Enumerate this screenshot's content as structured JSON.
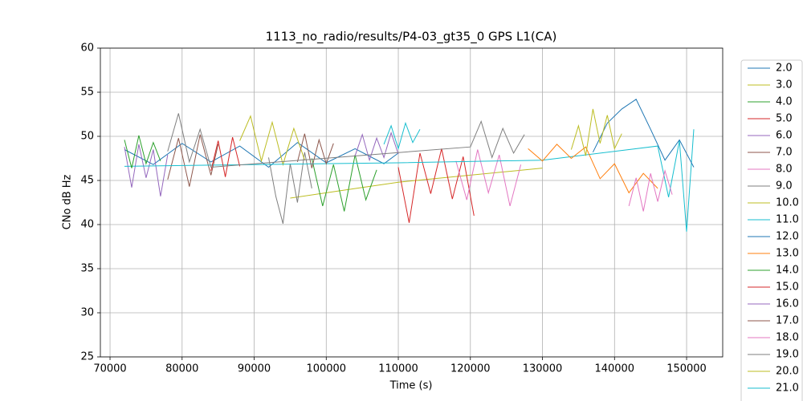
{
  "chart_data": {
    "type": "line",
    "title": "1113_no_radio/results/P4-03_gt35_0 GPS L1(CA)",
    "xlabel": "Time (s)",
    "ylabel": "CNo dB Hz",
    "xlim": [
      68660,
      155010
    ],
    "ylim": [
      25,
      60
    ],
    "xticks": [
      70000,
      80000,
      90000,
      100000,
      110000,
      120000,
      130000,
      140000,
      150000
    ],
    "yticks": [
      25,
      30,
      35,
      40,
      45,
      50,
      55,
      60
    ],
    "grid": true,
    "legend": "outside right",
    "series": [
      {
        "name": "2.0",
        "color": "#1f77b4",
        "x": [
          72000,
          76000,
          80000,
          84000,
          88000,
          92000,
          96000,
          100000,
          104000,
          108000,
          110000
        ],
        "values": [
          48.5,
          46.8,
          49.2,
          47.1,
          48.9,
          46.5,
          49.3,
          47.0,
          48.6,
          46.9,
          48.1
        ]
      },
      {
        "name": "3.0",
        "color": "#bcbd22",
        "x": [
          95000,
          100000,
          105000,
          110000,
          115000,
          120000,
          125000,
          130000
        ],
        "values": [
          43.0,
          43.6,
          44.2,
          44.8,
          45.2,
          45.6,
          46.0,
          46.4
        ]
      },
      {
        "name": "4.0",
        "color": "#2ca02c",
        "x": [
          98000,
          99500,
          101000,
          102500,
          104000,
          105500,
          107000
        ],
        "values": [
          47.5,
          42.1,
          46.8,
          41.5,
          47.9,
          42.8,
          46.2
        ]
      },
      {
        "name": "5.0",
        "color": "#d62728",
        "x": [
          110000,
          111500,
          113000,
          114500,
          116000,
          117500,
          119000,
          120500
        ],
        "values": [
          46.5,
          40.2,
          48.1,
          43.5,
          48.6,
          42.9,
          47.7,
          41.0
        ]
      },
      {
        "name": "6.0",
        "color": "#9467bd",
        "x": [
          72000,
          73000,
          74000,
          75000,
          76000,
          77000,
          78000
        ],
        "values": [
          48.8,
          44.2,
          49.1,
          45.3,
          48.5,
          43.2,
          47.9
        ]
      },
      {
        "name": "7.0",
        "color": "#8c564b",
        "x": [
          78000,
          79500,
          81000,
          82500,
          84000,
          85000
        ],
        "values": [
          45.1,
          49.8,
          44.3,
          50.2,
          45.6,
          49.1
        ]
      },
      {
        "name": "8.0",
        "color": "#e377c2",
        "x": [
          118000,
          119500,
          121000,
          122500,
          124000,
          125500,
          127000
        ],
        "values": [
          47.2,
          42.8,
          48.5,
          43.6,
          47.9,
          42.1,
          46.8
        ]
      },
      {
        "name": "9.0",
        "color": "#7f7f7f",
        "x": [
          92000,
          93000,
          94000,
          95000,
          96000,
          97000,
          98000
        ],
        "values": [
          47.6,
          43.2,
          40.1,
          46.9,
          42.5,
          48.2,
          44.1
        ]
      },
      {
        "name": "10.0",
        "color": "#bcbd22",
        "x": [
          88000,
          89500,
          91000,
          92500,
          94000,
          95500,
          97000
        ],
        "values": [
          49.5,
          52.3,
          47.2,
          51.6,
          46.8,
          50.9,
          47.3
        ]
      },
      {
        "name": "11.0",
        "color": "#17becf",
        "x": [
          72000,
          90000,
          110000,
          130000,
          146000,
          147500,
          149000,
          150000,
          151000
        ],
        "values": [
          46.6,
          46.8,
          47.0,
          47.3,
          48.9,
          43.1,
          49.5,
          39.2,
          50.8
        ]
      },
      {
        "name": "12.0",
        "color": "#1f77b4",
        "x": [
          137000,
          139000,
          141000,
          143000,
          145000,
          147000,
          149000,
          151000
        ],
        "values": [
          48.2,
          51.5,
          53.1,
          54.2,
          50.8,
          47.3,
          49.6,
          46.5
        ]
      },
      {
        "name": "13.0",
        "color": "#ff7f0e",
        "x": [
          128000,
          130000,
          132000,
          134000,
          136000,
          138000,
          140000,
          142000,
          144000,
          146000
        ],
        "values": [
          48.6,
          47.2,
          49.1,
          47.5,
          48.8,
          45.2,
          46.9,
          43.6,
          45.8,
          44.1
        ]
      },
      {
        "name": "14.0",
        "color": "#2ca02c",
        "x": [
          72000,
          73000,
          74000,
          75000,
          76000,
          77000
        ],
        "values": [
          49.6,
          46.4,
          50.1,
          46.9,
          49.3,
          47.2
        ]
      },
      {
        "name": "15.0",
        "color": "#d62728",
        "x": [
          84000,
          85000,
          86000,
          87000,
          88000
        ],
        "values": [
          46.1,
          49.5,
          45.4,
          49.9,
          46.6
        ]
      },
      {
        "name": "16.0",
        "color": "#9467bd",
        "x": [
          104000,
          105000,
          106000,
          107000,
          108000,
          109000,
          110000
        ],
        "values": [
          47.8,
          50.2,
          47.3,
          49.8,
          47.6,
          50.4,
          48.0
        ]
      },
      {
        "name": "17.0",
        "color": "#8c564b",
        "x": [
          96000,
          97000,
          98000,
          99000,
          100000,
          101000
        ],
        "values": [
          47.1,
          50.3,
          46.4,
          49.6,
          46.9,
          49.2
        ]
      },
      {
        "name": "18.0",
        "color": "#e377c2",
        "x": [
          142000,
          143000,
          144000,
          145000,
          146000,
          147000,
          148000
        ],
        "values": [
          42.1,
          45.3,
          41.5,
          45.8,
          42.6,
          46.1,
          43.4
        ]
      },
      {
        "name": "19.0",
        "color": "#7f7f7f",
        "x": [
          78000,
          79500,
          81000,
          82500,
          84000,
          120000,
          121500,
          123000,
          124500,
          126000,
          127500
        ],
        "values": [
          48.3,
          52.6,
          47.1,
          50.8,
          46.5,
          48.8,
          51.7,
          47.6,
          50.9,
          48.1,
          50.2
        ]
      },
      {
        "name": "20.0",
        "color": "#bcbd22",
        "x": [
          134000,
          135000,
          136000,
          137000,
          138000,
          139000,
          140000,
          141000
        ],
        "values": [
          48.5,
          51.2,
          47.8,
          53.1,
          49.2,
          52.4,
          48.6,
          50.3
        ]
      },
      {
        "name": "21.0",
        "color": "#17becf",
        "x": [
          108000,
          109000,
          110000,
          111000,
          112000,
          113000
        ],
        "values": [
          49.1,
          51.2,
          48.6,
          51.5,
          49.3,
          50.8
        ]
      }
    ]
  }
}
